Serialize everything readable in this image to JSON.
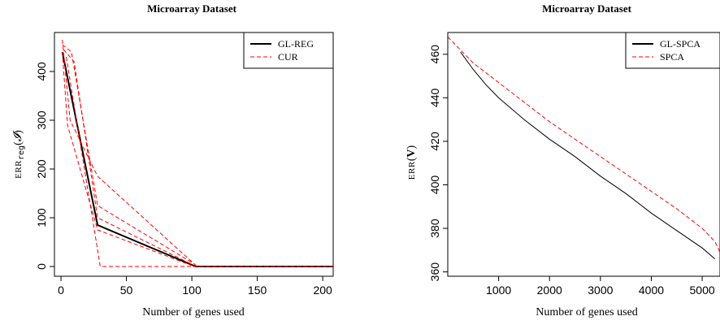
{
  "chart_data": [
    {
      "type": "line",
      "title": "Microarray Dataset",
      "xlabel": "Number of genes used",
      "ylabel": "ERR reg (I)",
      "xlim": [
        -5,
        208
      ],
      "ylim": [
        -20,
        480
      ],
      "xticks": [
        0,
        50,
        100,
        150,
        200
      ],
      "yticks": [
        0,
        100,
        200,
        300,
        400
      ],
      "legend_position": "top-right",
      "legend": [
        {
          "label": "GL-REG",
          "color": "#000000",
          "dash": "solid"
        },
        {
          "label": "CUR",
          "color": "#ff0000",
          "dash": "dashed"
        }
      ],
      "series": [
        {
          "name": "GL-REG",
          "color": "#000000",
          "dash": "solid",
          "width": 2,
          "x": [
            1,
            28,
            103,
            208
          ],
          "y": [
            440,
            85,
            0,
            0
          ]
        },
        {
          "name": "CUR",
          "color": "#ff0000",
          "dash": "dashed",
          "width": 1,
          "x": [
            1,
            7,
            28,
            104,
            208
          ],
          "y": [
            465,
            300,
            185,
            0,
            0
          ]
        },
        {
          "color": "#ff0000",
          "dash": "dashed",
          "width": 1,
          "x": [
            1,
            8,
            28,
            102
          ],
          "y": [
            455,
            440,
            125,
            5
          ]
        },
        {
          "color": "#ff0000",
          "dash": "dashed",
          "width": 1,
          "x": [
            2,
            10,
            28,
            101
          ],
          "y": [
            445,
            420,
            100,
            3
          ]
        },
        {
          "color": "#ff0000",
          "dash": "dashed",
          "width": 1,
          "x": [
            1,
            5,
            28,
            100
          ],
          "y": [
            440,
            290,
            75,
            2
          ]
        },
        {
          "color": "#ff0000",
          "dash": "dashed",
          "width": 1,
          "x": [
            4,
            30,
            208
          ],
          "y": [
            430,
            0,
            0
          ]
        }
      ]
    },
    {
      "type": "line",
      "title": "Microarray Dataset",
      "xlabel": "Number of genes used",
      "ylabel": "ERR(V)",
      "xlim": [
        0,
        5350
      ],
      "ylim": [
        358,
        470
      ],
      "xticks": [
        1000,
        2000,
        3000,
        4000,
        5000
      ],
      "yticks": [
        360,
        380,
        400,
        420,
        440,
        460
      ],
      "legend_position": "top-right",
      "legend": [
        {
          "label": "GL-SPCA",
          "color": "#000000",
          "dash": "solid"
        },
        {
          "label": "SPCA",
          "color": "#ff0000",
          "dash": "dashed"
        }
      ],
      "series": [
        {
          "name": "GL-SPCA",
          "color": "#000000",
          "dash": "solid",
          "width": 1,
          "x": [
            250,
            500,
            750,
            1000,
            1500,
            2000,
            2500,
            3000,
            3500,
            4000,
            4500,
            5000,
            5250
          ],
          "y": [
            461,
            453,
            446,
            440,
            430,
            421,
            413,
            404,
            396,
            387,
            379,
            371,
            366
          ]
        },
        {
          "name": "SPCA",
          "color": "#ff0000",
          "dash": "dashed",
          "width": 1,
          "x": [
            0,
            500,
            1000,
            1500,
            2000,
            2500,
            3000,
            3500,
            4000,
            4500,
            5000,
            5250,
            5350
          ],
          "y": [
            468,
            456,
            447,
            438,
            429,
            421,
            413,
            405,
            397,
            389,
            380,
            374,
            369
          ]
        }
      ]
    }
  ]
}
